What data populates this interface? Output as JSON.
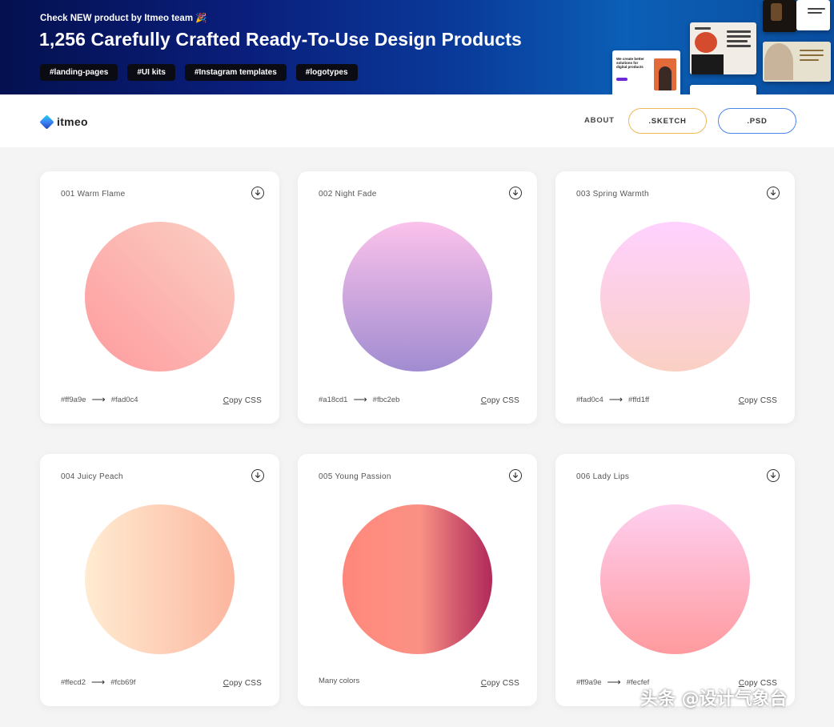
{
  "banner": {
    "kicker": "Check NEW product by Itmeo team 🎉",
    "headline": "1,256 Carefully Crafted Ready-To-Use Design Products",
    "tags": [
      "#landing-pages",
      "#UI kits",
      "#Instagram templates",
      "#logotypes"
    ],
    "preview_text": "We create better solutions for digital products"
  },
  "nav": {
    "logo": "itmeo",
    "about": "ABOUT",
    "sketch": ".SKETCH",
    "psd": ".PSD"
  },
  "cards": [
    {
      "title": "001 Warm Flame",
      "from": "#ff9a9e",
      "to": "#fad0c4",
      "copy": "Copy CSS",
      "colors": [
        "#ff9a9e",
        "#fad0c4"
      ]
    },
    {
      "title": "002 Night Fade",
      "from": "#a18cd1",
      "to": "#fbc2eb",
      "copy": "Copy CSS",
      "colors": [
        "#a18cd1",
        "#fbc2eb"
      ]
    },
    {
      "title": "003 Spring Warmth",
      "from": "#fad0c4",
      "to": "#ffd1ff",
      "copy": "Copy CSS",
      "colors": [
        "#fad0c4",
        "#ffd1ff"
      ]
    },
    {
      "title": "004 Juicy Peach",
      "from": "#ffecd2",
      "to": "#fcb69f",
      "copy": "Copy CSS",
      "colors": [
        "#ffecd2",
        "#fcb69f"
      ]
    },
    {
      "title": "005 Young Passion",
      "label": "Many colors",
      "copy": "Copy CSS",
      "colors": [
        "#ff8177",
        "#ff867a",
        "#ff8c7f",
        "#f99185",
        "#cf556c",
        "#b12a5b"
      ]
    },
    {
      "title": "006 Lady Lips",
      "from": "#ff9a9e",
      "to": "#fecfef",
      "copy": "Copy CSS",
      "colors": [
        "#ff9a9e",
        "#fecfef"
      ]
    }
  ],
  "watermark": "头条 @设计气象台"
}
